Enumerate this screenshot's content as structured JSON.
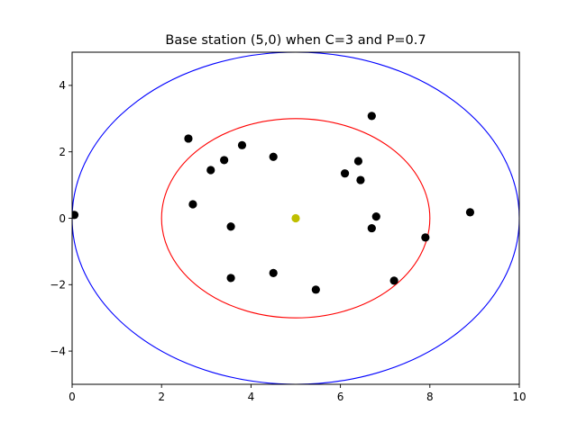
{
  "chart_data": {
    "type": "scatter",
    "title": "Base station (5,0) when C=3 and P=0.7",
    "xlabel": "",
    "ylabel": "",
    "xlim": [
      0,
      10
    ],
    "ylim": [
      -5,
      5
    ],
    "x_ticks": [
      "0",
      "2",
      "4",
      "6",
      "8",
      "10"
    ],
    "y_ticks": [
      "−4",
      "−2",
      "0",
      "2",
      "4"
    ],
    "x_tick_values": [
      0,
      2,
      4,
      6,
      8,
      10
    ],
    "y_tick_values": [
      -4,
      -2,
      0,
      2,
      4
    ],
    "grid": false,
    "base_station": {
      "x": 5,
      "y": 0,
      "color": "#bfbf00"
    },
    "circles": [
      {
        "cx": 5,
        "cy": 0,
        "r": 3,
        "color": "#ff0000"
      },
      {
        "cx": 5,
        "cy": 0,
        "r": 5,
        "color": "#0000ff"
      }
    ],
    "points_color": "#000000",
    "points": [
      {
        "x": 0.05,
        "y": 0.1
      },
      {
        "x": 2.6,
        "y": 2.4
      },
      {
        "x": 2.7,
        "y": 0.42
      },
      {
        "x": 3.1,
        "y": 1.45
      },
      {
        "x": 3.4,
        "y": 1.75
      },
      {
        "x": 3.8,
        "y": 2.2
      },
      {
        "x": 3.55,
        "y": -0.25
      },
      {
        "x": 3.55,
        "y": -1.8
      },
      {
        "x": 4.5,
        "y": 1.85
      },
      {
        "x": 4.5,
        "y": -1.65
      },
      {
        "x": 5.45,
        "y": -2.15
      },
      {
        "x": 6.1,
        "y": 1.35
      },
      {
        "x": 6.4,
        "y": 1.72
      },
      {
        "x": 6.45,
        "y": 1.15
      },
      {
        "x": 6.7,
        "y": 3.08
      },
      {
        "x": 6.7,
        "y": -0.3
      },
      {
        "x": 6.8,
        "y": 0.05
      },
      {
        "x": 7.2,
        "y": -1.88
      },
      {
        "x": 7.9,
        "y": -0.58
      },
      {
        "x": 8.9,
        "y": 0.18
      }
    ]
  }
}
